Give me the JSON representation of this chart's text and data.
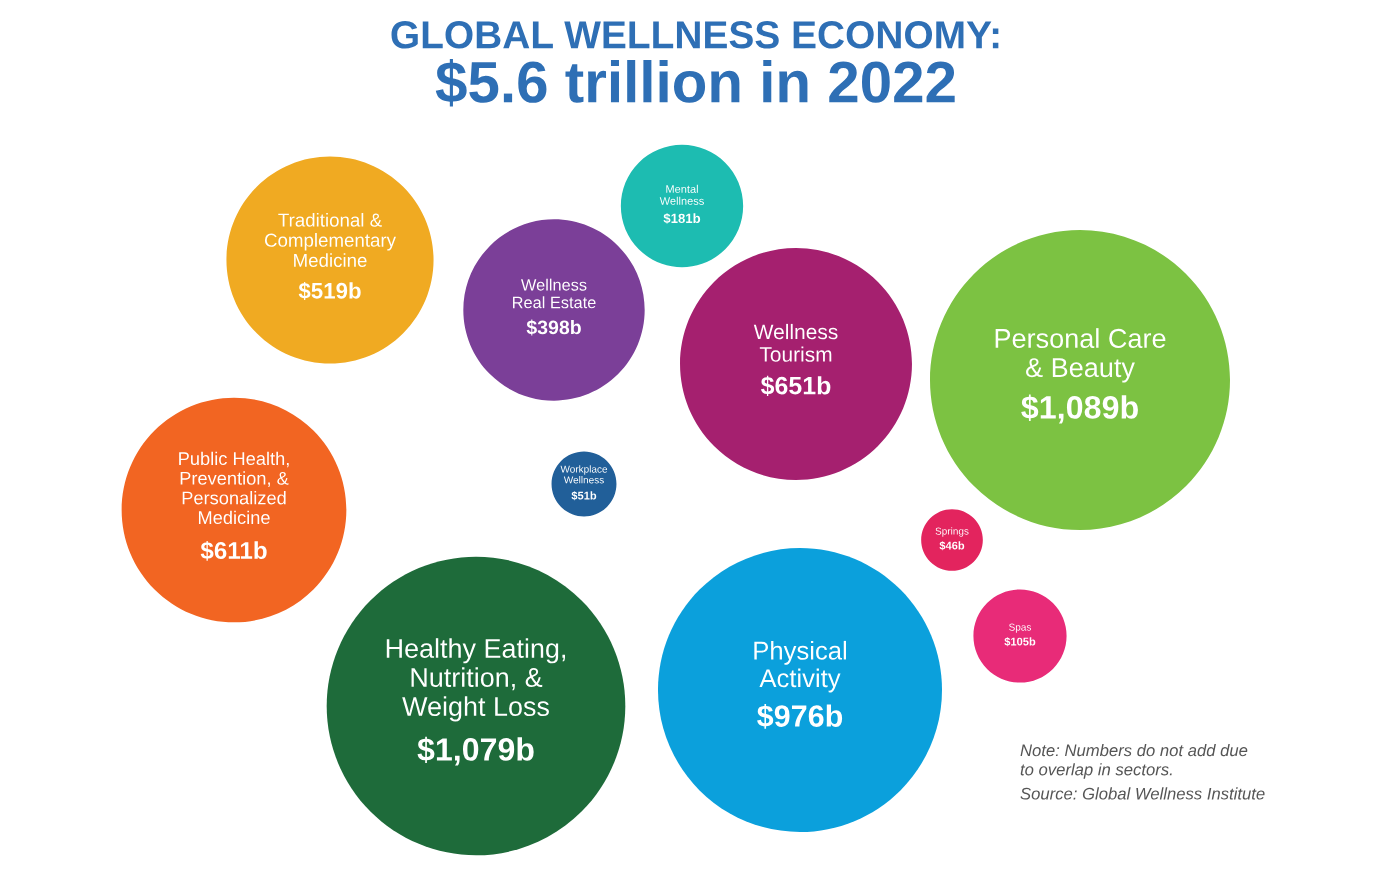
{
  "chart_data": {
    "type": "other",
    "title": "GLOBAL WELLNESS ECONOMY:",
    "subtitle": "$5.6 trillion in 2022",
    "categories": [
      "Mental\nWellness",
      "Traditional &\nComplementary\nMedicine",
      "Wellness\nReal Estate",
      "Wellness\nTourism",
      "Personal Care\n& Beauty",
      "Public Health,\nPrevention, &\nPersonalized\nMedicine",
      "Workplace\nWellness",
      "Springs",
      "Spas",
      "Healthy Eating,\nNutrition, &\nWeight Loss",
      "Physical\nActivity"
    ],
    "values": [
      181,
      519,
      398,
      651,
      1089,
      611,
      51,
      46,
      105,
      1079,
      976
    ],
    "value_labels": [
      "$181b",
      "$519b",
      "$398b",
      "$651b",
      "$1,089b",
      "$611b",
      "$51b",
      "$46b",
      "$105b",
      "$1,079b",
      "$976b"
    ],
    "colors": [
      "#1dbcb1",
      "#f0aa22",
      "#7b3f98",
      "#a5206f",
      "#7cc242",
      "#f26522",
      "#215f99",
      "#e3245e",
      "#e82b78",
      "#1e6b3a",
      "#0ba0dc"
    ],
    "annotations": [
      "Note: Numbers do not add due\nto overlap in sectors.",
      "Source: Global Wellness Institute"
    ]
  }
}
